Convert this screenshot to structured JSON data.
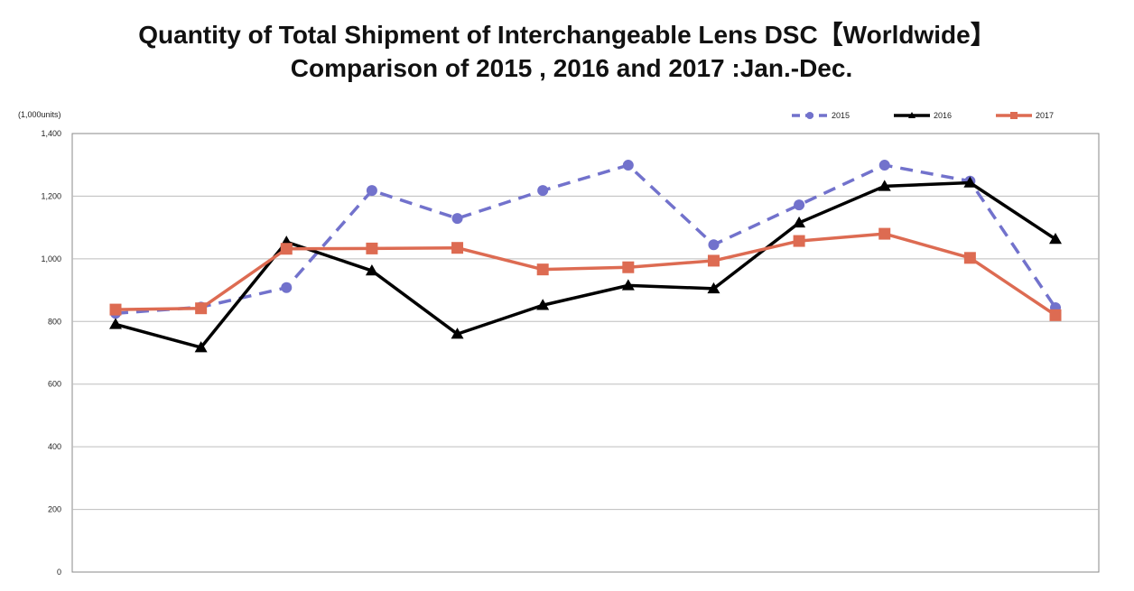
{
  "chart_data": {
    "type": "line",
    "title": "Quantity of Total Shipment of Interchangeable Lens DSC【Worldwide】",
    "subtitle": "Comparison of 2015 , 2016 and 2017 :Jan.-Dec.",
    "ylabel": "(1,000units)",
    "ylim": [
      0,
      1400
    ],
    "yticks": [
      "0",
      "200",
      "400",
      "600",
      "800",
      "1,000",
      "1,200",
      "1,400"
    ],
    "ytick_values": [
      0,
      200,
      400,
      600,
      800,
      1000,
      1200,
      1400
    ],
    "x": [
      1,
      2,
      3,
      4,
      5,
      6,
      7,
      8,
      9,
      10,
      11,
      12
    ],
    "grid": true,
    "legend_position": "top-right",
    "series": [
      {
        "name": "2015",
        "color": "#7272cc",
        "marker": "circle",
        "dash": true,
        "values": [
          826,
          846,
          908,
          1218,
          1129,
          1218,
          1299,
          1045,
          1172,
          1299,
          1248,
          844
        ]
      },
      {
        "name": "2016",
        "color": "#000000",
        "marker": "triangle",
        "dash": false,
        "values": [
          791,
          717,
          1054,
          962,
          760,
          852,
          915,
          905,
          1115,
          1232,
          1243,
          1063
        ]
      },
      {
        "name": "2017",
        "color": "#dd6b52",
        "marker": "square",
        "dash": false,
        "values": [
          838,
          842,
          1032,
          1033,
          1035,
          966,
          973,
          994,
          1057,
          1080,
          1003,
          820
        ]
      }
    ]
  }
}
